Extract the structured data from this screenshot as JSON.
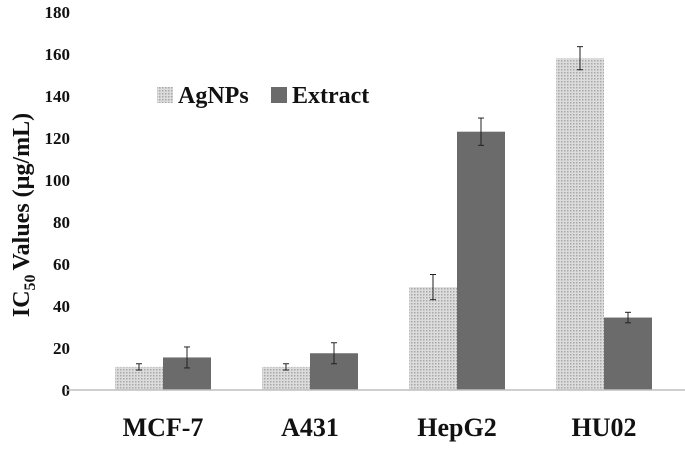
{
  "chart_data": {
    "type": "bar",
    "title": "",
    "xlabel": "",
    "ylabel": "Values (µg/mL)",
    "ylabel_prefix": "IC",
    "ylabel_subscript": "50",
    "ylim": [
      0,
      180
    ],
    "yticks": [
      "0",
      "20",
      "40",
      "60",
      "80",
      "100",
      "120",
      "140",
      "160",
      "180"
    ],
    "grid": false,
    "legend_position": "top-left",
    "categories": [
      "MCF-7",
      "A431",
      "HepG2",
      "HU02"
    ],
    "series": [
      {
        "name": "AgNPs",
        "values": [
          11,
          11,
          49,
          158
        ],
        "errors": [
          1.5,
          1.5,
          6,
          5.5
        ],
        "color": "#d4d4d4",
        "pattern": "dotted"
      },
      {
        "name": "Extract",
        "values": [
          15.5,
          17.5,
          123,
          34.5
        ],
        "errors": [
          5,
          5,
          6.5,
          2.5
        ],
        "color": "#6b6b6b",
        "pattern": "solid"
      }
    ]
  }
}
